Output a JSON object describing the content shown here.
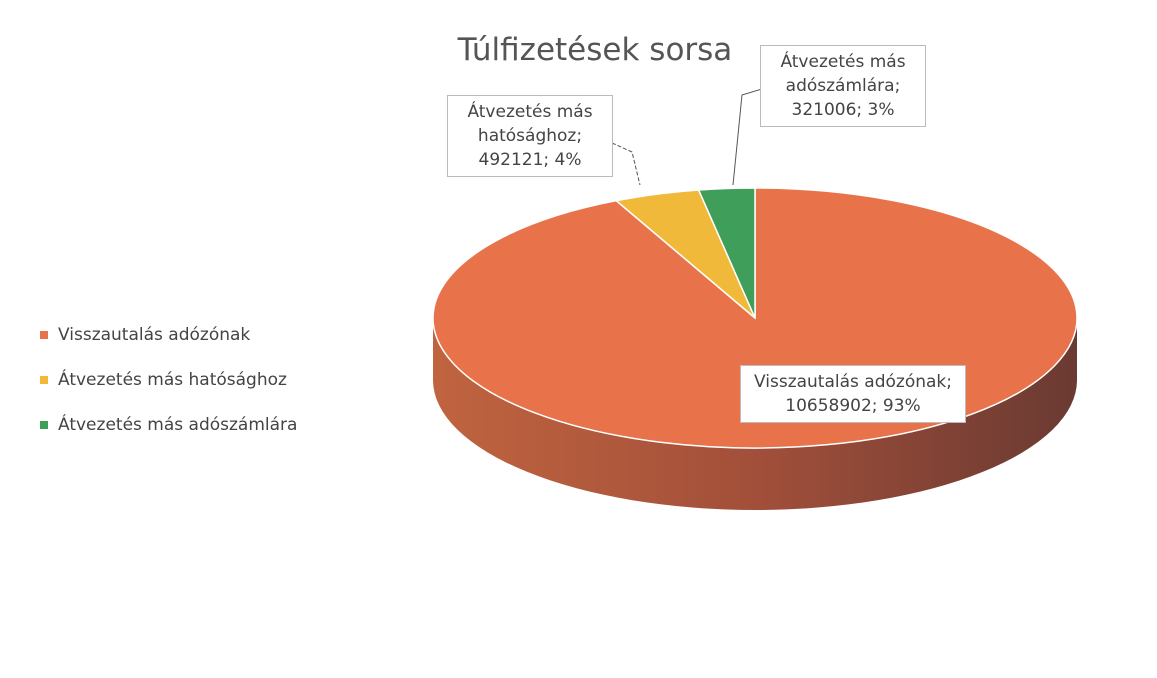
{
  "chart_data": {
    "type": "pie3d",
    "title": "Túlfizetések sorsa",
    "categories": [
      "Visszautalás adózónak",
      "Átvezetés más hatósághoz",
      "Átvezetés más adószámlára"
    ],
    "values": [
      10658902,
      492121,
      321006
    ],
    "value_labels": [
      "Visszautalás adózónak; 10658902; 93%",
      "Átvezetés más hatósághoz; 492121; 4%",
      "Átvezetés más adószámlára; 321006; 3%"
    ],
    "colors": [
      "#e8734a",
      "#f0b93a",
      "#3f9e5a"
    ],
    "legend": "left"
  }
}
